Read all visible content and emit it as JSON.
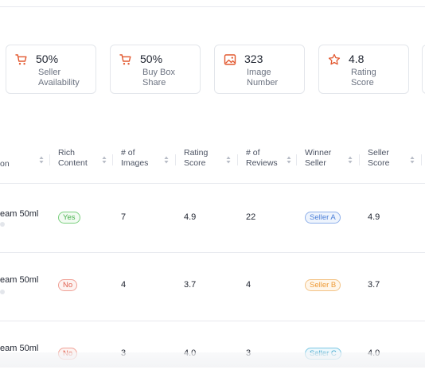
{
  "metrics": [
    {
      "value": "50%",
      "label_l1": "Seller",
      "label_l2": "Availability",
      "icon": "cart-icon"
    },
    {
      "value": "50%",
      "label_l1": "Buy Box",
      "label_l2": "Share",
      "icon": "cart-icon"
    },
    {
      "value": "323",
      "label_l1": "Image",
      "label_l2": "Number",
      "icon": "image-icon"
    },
    {
      "value": "4.8",
      "label_l1": "Rating",
      "label_l2": "Score",
      "icon": "star-icon"
    }
  ],
  "table": {
    "headers": [
      {
        "l1": "on",
        "l2": ""
      },
      {
        "l1": "Rich",
        "l2": "Content"
      },
      {
        "l1": "# of",
        "l2": "Images"
      },
      {
        "l1": "Rating",
        "l2": "Score"
      },
      {
        "l1": "# of",
        "l2": "Reviews"
      },
      {
        "l1": "Winner",
        "l2": "Seller"
      },
      {
        "l1": "Seller",
        "l2": "Score"
      }
    ],
    "rows": [
      {
        "product": "eam 50ml",
        "rich": "Yes",
        "images": "7",
        "rating": "4.9",
        "reviews": "22",
        "winner": "Seller A",
        "seller_score": "4.9"
      },
      {
        "product": "eam 50ml",
        "rich": "No",
        "images": "4",
        "rating": "3.7",
        "reviews": "4",
        "winner": "Seller B",
        "seller_score": "3.7"
      },
      {
        "product": "eam 50ml",
        "rich": "No",
        "images": "3",
        "rating": "4.0",
        "reviews": "3",
        "winner": "Seller C",
        "seller_score": "4.0"
      }
    ]
  },
  "colors": {
    "accent": "#e2582f",
    "border": "#e3e6eb"
  }
}
